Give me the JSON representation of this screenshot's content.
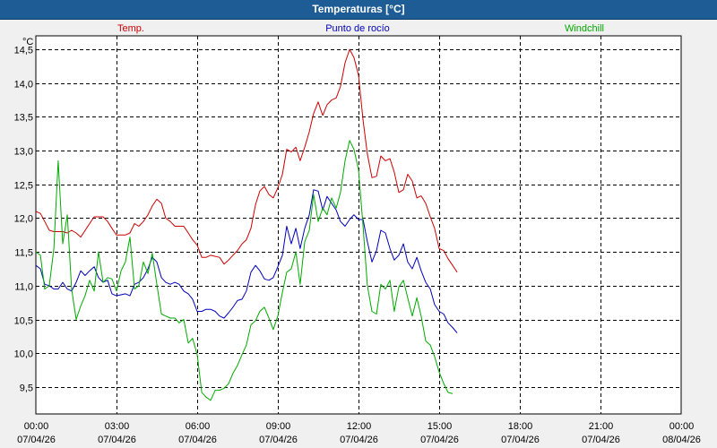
{
  "window": {
    "title": "Temperaturas [°C]"
  },
  "colors": {
    "temp": "#cc0000",
    "dew": "#0000bb",
    "windchill": "#00aa00",
    "titlebar": "#1d5c95"
  },
  "chart_data": {
    "type": "line",
    "title": "Temperaturas [°C]",
    "ylabel": "°C",
    "ylim": [
      9.1,
      14.7
    ],
    "yticks": [
      "9,5",
      "10,0",
      "10,5",
      "11,0",
      "11,5",
      "12,0",
      "12,5",
      "13,0",
      "13,5",
      "14,0",
      "14,5"
    ],
    "ytick_values": [
      9.5,
      10.0,
      10.5,
      11.0,
      11.5,
      12.0,
      12.5,
      13.0,
      13.5,
      14.0,
      14.5
    ],
    "xlim": [
      0,
      24
    ],
    "xticks": [
      {
        "time": "00:00",
        "date": "07/04/26"
      },
      {
        "time": "03:00",
        "date": "07/04/26"
      },
      {
        "time": "06:00",
        "date": "07/04/26"
      },
      {
        "time": "09:00",
        "date": "07/04/26"
      },
      {
        "time": "12:00",
        "date": "07/04/26"
      },
      {
        "time": "15:00",
        "date": "07/04/26"
      },
      {
        "time": "18:00",
        "date": "07/04/26"
      },
      {
        "time": "21:00",
        "date": "07/04/26"
      },
      {
        "time": "00:00",
        "date": "08/04/26"
      }
    ],
    "xtick_hours": [
      0,
      3,
      6,
      9,
      12,
      15,
      18,
      21,
      24
    ],
    "grid": true,
    "legend_position": "top",
    "series": [
      {
        "name": "Temp.",
        "color": "#cc0000",
        "points": [
          [
            0,
            12.1
          ],
          [
            0.17,
            12.07
          ],
          [
            0.33,
            11.95
          ],
          [
            0.5,
            11.82
          ],
          [
            0.67,
            11.8
          ],
          [
            1.0,
            11.8
          ],
          [
            1.17,
            11.78
          ],
          [
            1.33,
            11.82
          ],
          [
            1.5,
            11.78
          ],
          [
            1.67,
            11.72
          ],
          [
            2.0,
            11.92
          ],
          [
            2.17,
            12.02
          ],
          [
            2.5,
            12.02
          ],
          [
            2.67,
            11.95
          ],
          [
            2.83,
            11.85
          ],
          [
            3.0,
            11.75
          ],
          [
            3.33,
            11.75
          ],
          [
            3.5,
            11.78
          ],
          [
            3.67,
            11.92
          ],
          [
            3.83,
            11.88
          ],
          [
            4.0,
            11.95
          ],
          [
            4.17,
            12.05
          ],
          [
            4.33,
            12.18
          ],
          [
            4.5,
            12.28
          ],
          [
            4.67,
            12.22
          ],
          [
            4.83,
            12.0
          ],
          [
            5.0,
            11.95
          ],
          [
            5.17,
            11.88
          ],
          [
            5.5,
            11.88
          ],
          [
            5.67,
            11.78
          ],
          [
            5.83,
            11.68
          ],
          [
            6.0,
            11.6
          ],
          [
            6.17,
            11.42
          ],
          [
            6.33,
            11.42
          ],
          [
            6.5,
            11.45
          ],
          [
            6.83,
            11.42
          ],
          [
            7.0,
            11.32
          ],
          [
            7.17,
            11.38
          ],
          [
            7.33,
            11.45
          ],
          [
            7.5,
            11.52
          ],
          [
            7.67,
            11.62
          ],
          [
            7.83,
            11.68
          ],
          [
            8.0,
            11.85
          ],
          [
            8.17,
            12.2
          ],
          [
            8.33,
            12.4
          ],
          [
            8.5,
            12.47
          ],
          [
            8.67,
            12.35
          ],
          [
            8.83,
            12.3
          ],
          [
            9.0,
            12.45
          ],
          [
            9.17,
            12.65
          ],
          [
            9.33,
            13.02
          ],
          [
            9.5,
            12.98
          ],
          [
            9.67,
            13.05
          ],
          [
            9.83,
            12.85
          ],
          [
            10.0,
            13.05
          ],
          [
            10.17,
            13.28
          ],
          [
            10.33,
            13.55
          ],
          [
            10.5,
            13.72
          ],
          [
            10.67,
            13.52
          ],
          [
            10.83,
            13.68
          ],
          [
            11.0,
            13.75
          ],
          [
            11.17,
            13.78
          ],
          [
            11.33,
            13.95
          ],
          [
            11.5,
            14.3
          ],
          [
            11.67,
            14.5
          ],
          [
            11.83,
            14.38
          ],
          [
            12.0,
            14.12
          ],
          [
            12.17,
            13.45
          ],
          [
            12.33,
            12.95
          ],
          [
            12.5,
            12.6
          ],
          [
            12.67,
            12.62
          ],
          [
            12.83,
            12.92
          ],
          [
            13.0,
            12.85
          ],
          [
            13.17,
            12.88
          ],
          [
            13.33,
            12.68
          ],
          [
            13.5,
            12.38
          ],
          [
            13.67,
            12.42
          ],
          [
            13.83,
            12.65
          ],
          [
            14.0,
            12.55
          ],
          [
            14.17,
            12.3
          ],
          [
            14.33,
            12.33
          ],
          [
            14.5,
            12.22
          ],
          [
            14.67,
            12.02
          ],
          [
            14.83,
            11.85
          ],
          [
            15.0,
            11.55
          ],
          [
            15.17,
            11.52
          ],
          [
            15.33,
            11.4
          ],
          [
            15.5,
            11.3
          ],
          [
            15.67,
            11.2
          ]
        ]
      },
      {
        "name": "Punto de rocío",
        "color": "#0000bb",
        "points": [
          [
            0,
            11.3
          ],
          [
            0.17,
            11.25
          ],
          [
            0.33,
            11.02
          ],
          [
            0.5,
            11.0
          ],
          [
            0.67,
            10.95
          ],
          [
            0.83,
            10.95
          ],
          [
            1.0,
            11.05
          ],
          [
            1.17,
            10.95
          ],
          [
            1.33,
            10.92
          ],
          [
            1.5,
            11.05
          ],
          [
            1.67,
            11.22
          ],
          [
            1.83,
            11.15
          ],
          [
            2.0,
            11.22
          ],
          [
            2.17,
            11.28
          ],
          [
            2.33,
            11.12
          ],
          [
            2.5,
            11.05
          ],
          [
            2.67,
            11.08
          ],
          [
            2.83,
            10.88
          ],
          [
            3.0,
            10.85
          ],
          [
            3.33,
            10.88
          ],
          [
            3.5,
            10.85
          ],
          [
            3.67,
            11.02
          ],
          [
            3.83,
            11.05
          ],
          [
            4.0,
            11.12
          ],
          [
            4.17,
            11.25
          ],
          [
            4.33,
            11.42
          ],
          [
            4.5,
            11.35
          ],
          [
            4.67,
            11.12
          ],
          [
            4.83,
            11.05
          ],
          [
            5.0,
            11.02
          ],
          [
            5.17,
            11.05
          ],
          [
            5.33,
            11.02
          ],
          [
            5.5,
            10.92
          ],
          [
            5.67,
            10.88
          ],
          [
            5.83,
            10.8
          ],
          [
            6.0,
            10.62
          ],
          [
            6.17,
            10.62
          ],
          [
            6.33,
            10.65
          ],
          [
            6.5,
            10.65
          ],
          [
            6.67,
            10.62
          ],
          [
            6.83,
            10.55
          ],
          [
            7.0,
            10.52
          ],
          [
            7.17,
            10.6
          ],
          [
            7.33,
            10.68
          ],
          [
            7.5,
            10.78
          ],
          [
            7.67,
            10.8
          ],
          [
            7.83,
            10.92
          ],
          [
            8.0,
            11.2
          ],
          [
            8.17,
            11.3
          ],
          [
            8.33,
            11.22
          ],
          [
            8.5,
            11.1
          ],
          [
            8.67,
            11.08
          ],
          [
            8.83,
            11.12
          ],
          [
            9.0,
            11.28
          ],
          [
            9.17,
            11.45
          ],
          [
            9.33,
            11.88
          ],
          [
            9.5,
            11.62
          ],
          [
            9.67,
            11.85
          ],
          [
            9.83,
            11.55
          ],
          [
            10.0,
            11.85
          ],
          [
            10.17,
            12.05
          ],
          [
            10.33,
            12.42
          ],
          [
            10.5,
            12.4
          ],
          [
            10.67,
            12.12
          ],
          [
            10.83,
            12.32
          ],
          [
            11.0,
            12.22
          ],
          [
            11.17,
            12.12
          ],
          [
            11.33,
            11.95
          ],
          [
            11.5,
            11.88
          ],
          [
            11.67,
            11.98
          ],
          [
            11.83,
            12.05
          ],
          [
            12.0,
            11.98
          ],
          [
            12.17,
            11.98
          ],
          [
            12.33,
            11.65
          ],
          [
            12.5,
            11.35
          ],
          [
            12.67,
            11.52
          ],
          [
            12.83,
            11.82
          ],
          [
            13.0,
            11.78
          ],
          [
            13.17,
            11.55
          ],
          [
            13.33,
            11.38
          ],
          [
            13.5,
            11.45
          ],
          [
            13.67,
            11.62
          ],
          [
            13.83,
            11.35
          ],
          [
            14.0,
            11.25
          ],
          [
            14.17,
            11.42
          ],
          [
            14.33,
            11.22
          ],
          [
            14.5,
            11.05
          ],
          [
            14.67,
            10.95
          ],
          [
            14.83,
            10.72
          ],
          [
            15.0,
            10.62
          ],
          [
            15.17,
            10.58
          ],
          [
            15.33,
            10.45
          ],
          [
            15.5,
            10.38
          ],
          [
            15.67,
            10.3
          ]
        ]
      },
      {
        "name": "Windchill",
        "color": "#00aa00",
        "points": [
          [
            0,
            11.5
          ],
          [
            0.17,
            11.45
          ],
          [
            0.33,
            10.95
          ],
          [
            0.5,
            11.0
          ],
          [
            0.67,
            11.55
          ],
          [
            0.83,
            12.85
          ],
          [
            1.0,
            11.62
          ],
          [
            1.17,
            12.05
          ],
          [
            1.33,
            10.95
          ],
          [
            1.5,
            10.5
          ],
          [
            1.67,
            10.7
          ],
          [
            1.83,
            10.85
          ],
          [
            2.0,
            11.08
          ],
          [
            2.17,
            10.92
          ],
          [
            2.33,
            11.5
          ],
          [
            2.5,
            11.05
          ],
          [
            2.67,
            11.12
          ],
          [
            2.83,
            11.1
          ],
          [
            3.0,
            10.92
          ],
          [
            3.17,
            11.22
          ],
          [
            3.33,
            11.35
          ],
          [
            3.5,
            11.72
          ],
          [
            3.67,
            10.95
          ],
          [
            3.83,
            11.0
          ],
          [
            4.0,
            11.35
          ],
          [
            4.17,
            11.18
          ],
          [
            4.33,
            11.48
          ],
          [
            4.5,
            11.02
          ],
          [
            4.67,
            10.58
          ],
          [
            4.83,
            10.55
          ],
          [
            5.0,
            10.52
          ],
          [
            5.17,
            10.52
          ],
          [
            5.33,
            10.45
          ],
          [
            5.5,
            10.5
          ],
          [
            5.67,
            10.15
          ],
          [
            5.83,
            10.22
          ],
          [
            6.0,
            9.98
          ],
          [
            6.17,
            9.42
          ],
          [
            6.33,
            9.35
          ],
          [
            6.5,
            9.3
          ],
          [
            6.67,
            9.45
          ],
          [
            6.83,
            9.45
          ],
          [
            7.0,
            9.48
          ],
          [
            7.17,
            9.55
          ],
          [
            7.33,
            9.7
          ],
          [
            7.5,
            9.82
          ],
          [
            7.67,
            9.98
          ],
          [
            7.83,
            10.12
          ],
          [
            8.0,
            10.42
          ],
          [
            8.17,
            10.48
          ],
          [
            8.33,
            10.62
          ],
          [
            8.5,
            10.68
          ],
          [
            8.67,
            10.52
          ],
          [
            8.83,
            10.35
          ],
          [
            9.0,
            10.55
          ],
          [
            9.17,
            10.9
          ],
          [
            9.33,
            11.2
          ],
          [
            9.5,
            11.25
          ],
          [
            9.67,
            11.5
          ],
          [
            9.83,
            11.02
          ],
          [
            10.0,
            11.65
          ],
          [
            10.17,
            11.82
          ],
          [
            10.33,
            12.35
          ],
          [
            10.5,
            11.95
          ],
          [
            10.67,
            12.15
          ],
          [
            10.83,
            12.05
          ],
          [
            11.0,
            12.3
          ],
          [
            11.17,
            12.15
          ],
          [
            11.33,
            12.38
          ],
          [
            11.5,
            12.85
          ],
          [
            11.67,
            13.15
          ],
          [
            11.83,
            13.02
          ],
          [
            12.0,
            12.72
          ],
          [
            12.17,
            11.88
          ],
          [
            12.33,
            11.0
          ],
          [
            12.5,
            10.62
          ],
          [
            12.67,
            10.58
          ],
          [
            12.83,
            11.02
          ],
          [
            13.0,
            10.95
          ],
          [
            13.17,
            11.08
          ],
          [
            13.33,
            10.62
          ],
          [
            13.5,
            10.98
          ],
          [
            13.67,
            11.08
          ],
          [
            13.83,
            10.82
          ],
          [
            14.0,
            10.55
          ],
          [
            14.17,
            10.82
          ],
          [
            14.33,
            10.55
          ],
          [
            14.5,
            10.18
          ],
          [
            14.67,
            10.12
          ],
          [
            14.83,
            9.95
          ],
          [
            15.0,
            9.72
          ],
          [
            15.17,
            9.55
          ],
          [
            15.33,
            9.42
          ],
          [
            15.5,
            9.4
          ]
        ]
      }
    ]
  }
}
